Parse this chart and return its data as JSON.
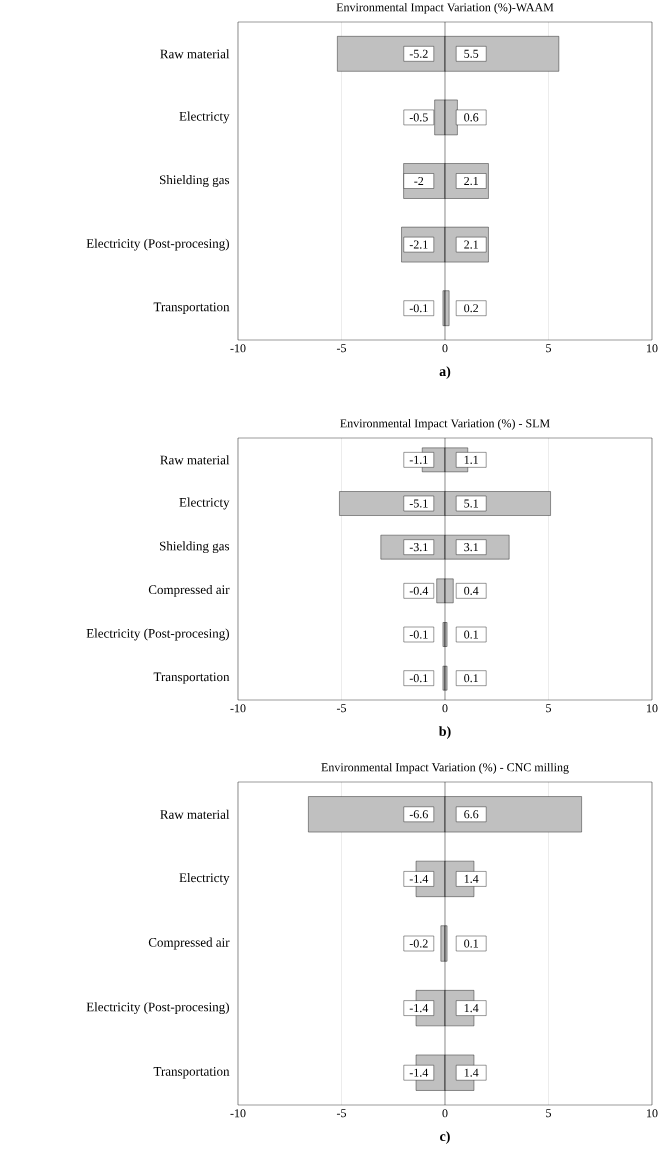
{
  "chart_data": [
    {
      "type": "bar",
      "orientation": "horizontal",
      "title": "Environmental Impact Variation (%)-WAAM",
      "categories": [
        "Raw material",
        "Electricty",
        "Shielding gas",
        "Electricity (Post-procesing)",
        "Transportation"
      ],
      "series": [
        {
          "color": "#c0c0c0",
          "values": [
            -5.2,
            -0.5,
            -2,
            -2.1,
            -0.1
          ]
        },
        {
          "color": "#c0c0c0",
          "values": [
            5.5,
            0.6,
            2.1,
            2.1,
            0.2
          ]
        }
      ],
      "xlim": [
        -10,
        10
      ],
      "xticks": [
        -10,
        -5,
        0,
        5,
        10
      ],
      "grid": "x",
      "stacked": true,
      "data_labels": true,
      "annotations": [
        "a)"
      ]
    },
    {
      "type": "bar",
      "orientation": "horizontal",
      "title": "Environmental Impact Variation (%) - SLM",
      "categories": [
        "Raw material",
        "Electricty",
        "Shielding gas",
        "Compressed air",
        "Electricity (Post-procesing)",
        "Transportation"
      ],
      "series": [
        {
          "color": "#c0c0c0",
          "values": [
            -1.1,
            -5.1,
            -3.1,
            -0.4,
            -0.1,
            -0.1
          ]
        },
        {
          "color": "#c0c0c0",
          "values": [
            1.1,
            5.1,
            3.1,
            0.4,
            0.1,
            0.1
          ]
        }
      ],
      "xlim": [
        -10,
        10
      ],
      "xticks": [
        -10,
        -5,
        0,
        5,
        10
      ],
      "grid": "x",
      "stacked": true,
      "data_labels": true,
      "annotations": [
        "b)"
      ]
    },
    {
      "type": "bar",
      "orientation": "horizontal",
      "title": "Environmental Impact Variation (%) - CNC milling",
      "categories": [
        "Raw material",
        "Electricty",
        "Compressed air",
        "Electricity (Post-procesing)",
        "Transportation"
      ],
      "series": [
        {
          "color": "#c0c0c0",
          "values": [
            -6.6,
            -1.4,
            -0.2,
            -1.4,
            -1.4
          ]
        },
        {
          "color": "#c0c0c0",
          "values": [
            6.6,
            1.4,
            0.1,
            1.4,
            1.4
          ]
        }
      ],
      "xlim": [
        -10,
        10
      ],
      "xticks": [
        -10,
        -5,
        0,
        5,
        10
      ],
      "grid": "x",
      "stacked": true,
      "data_labels": true,
      "annotations": [
        "c)"
      ]
    }
  ]
}
